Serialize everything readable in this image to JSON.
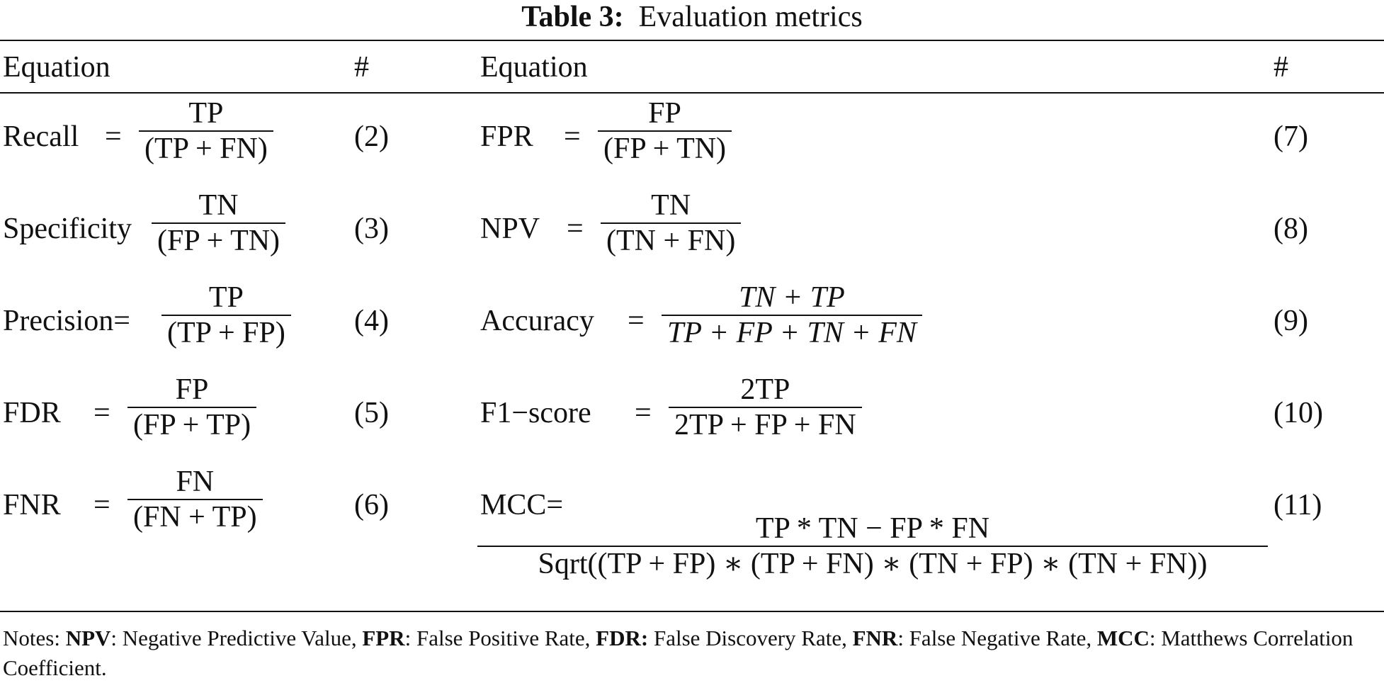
{
  "caption": {
    "label": "Table 3:",
    "text": "Evaluation metrics"
  },
  "headers": {
    "eq_left": "Equation",
    "num_left": "#",
    "eq_right": "Equation",
    "num_right": "#"
  },
  "left": [
    {
      "label": "Recall",
      "eq": "=",
      "numerator": "TP",
      "denominator": "(TP  +  FN)",
      "number": "(2)"
    },
    {
      "label": "Specificity",
      "eq": "",
      "numerator": "TN",
      "denominator": "(FP  +  TN)",
      "number": "(3)"
    },
    {
      "label": "Precision=",
      "eq": "",
      "numerator": "TP",
      "denominator": "(TP  +  FP)",
      "number": "(4)"
    },
    {
      "label": "FDR",
      "eq": "=",
      "numerator": "FP",
      "denominator": "(FP  +  TP)",
      "number": "(5)"
    },
    {
      "label": "FNR",
      "eq": "=",
      "numerator": "FN",
      "denominator": "(FN  +  TP)",
      "number": "(6)"
    }
  ],
  "right": [
    {
      "label": "FPR",
      "eq": "=",
      "numerator": "FP",
      "denominator": "(FP  +  TN)",
      "number": "(7)"
    },
    {
      "label": "NPV",
      "eq": "=",
      "numerator": "TN",
      "denominator": "(TN  +  FN)",
      "number": "(8)"
    },
    {
      "label": "Accuracy",
      "eq": "=",
      "numerator": "TN + TP",
      "denominator": "TP + FP + TN + FN",
      "number": "(9)"
    },
    {
      "label": "F1−score",
      "eq": "=",
      "numerator": "2TP",
      "denominator": "2TP  + FP  + FN",
      "number": "(10)"
    },
    {
      "label": "MCC=",
      "eq": "",
      "numerator": "TP * TN  −  FP * FN",
      "denominator": "Sqrt((TP + FP) ∗ (TP + FN) ∗ (TN + FP) ∗ (TN + FN))",
      "number": "(11)"
    }
  ],
  "notes": {
    "prefix": "Notes: ",
    "items": [
      {
        "term": "NPV",
        "def": ": Negative Predictive Value, "
      },
      {
        "term": "FPR",
        "def": ": False Positive Rate, "
      },
      {
        "term": "FDR:",
        "def": " False Discovery Rate, "
      },
      {
        "term": "FNR",
        "def": ": False Negative Rate, "
      },
      {
        "term": "MCC",
        "def": ": Matthews Correlation Coefficient."
      }
    ]
  }
}
